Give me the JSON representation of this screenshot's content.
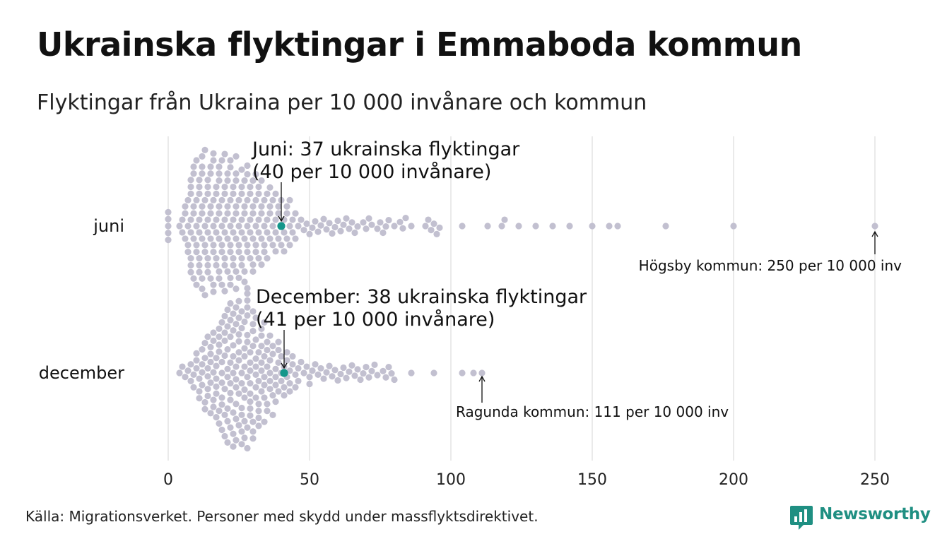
{
  "title": "Ukrainska flyktingar i Emmaboda kommun",
  "subtitle": "Flyktingar från Ukraina per 10 000 invånare och kommun",
  "source": "Källa: Migrationsverket. Personer med skydd under massflyktsdirektivet.",
  "brand": {
    "name": "Newsworthy",
    "color": "#1f8f82",
    "icon": "newsworthy-chart-icon"
  },
  "colors": {
    "dot": "#c2c0d0",
    "highlight": "#14968a",
    "grid": "#d4d4d4"
  },
  "chart_data": {
    "type": "scatter",
    "style": "beeswarm",
    "x_axis": {
      "min": 0,
      "max": 250,
      "ticks": [
        0,
        50,
        100,
        150,
        200,
        250
      ]
    },
    "grid": true,
    "series": [
      {
        "name": "juni",
        "values": [
          0,
          0,
          0,
          0,
          0,
          4,
          5,
          5,
          6,
          6,
          6,
          7,
          7,
          7,
          7,
          8,
          8,
          8,
          8,
          8,
          8,
          8,
          8,
          9,
          9,
          9,
          9,
          9,
          9,
          10,
          10,
          10,
          10,
          10,
          10,
          11,
          11,
          11,
          11,
          11,
          11,
          11,
          11,
          12,
          12,
          12,
          12,
          12,
          12,
          12,
          12,
          13,
          13,
          13,
          13,
          13,
          13,
          14,
          14,
          14,
          14,
          14,
          14,
          14,
          14,
          15,
          15,
          15,
          15,
          15,
          15,
          16,
          16,
          16,
          16,
          16,
          16,
          16,
          16,
          17,
          17,
          17,
          17,
          17,
          17,
          18,
          18,
          18,
          18,
          18,
          18,
          18,
          18,
          19,
          19,
          19,
          19,
          19,
          19,
          20,
          20,
          20,
          20,
          20,
          20,
          20,
          20,
          21,
          21,
          21,
          21,
          21,
          21,
          22,
          22,
          22,
          22,
          22,
          22,
          22,
          22,
          23,
          23,
          23,
          23,
          23,
          23,
          24,
          24,
          24,
          24,
          24,
          24,
          24,
          24,
          25,
          25,
          25,
          25,
          25,
          26,
          26,
          26,
          26,
          26,
          26,
          26,
          27,
          27,
          27,
          27,
          27,
          27,
          28,
          28,
          28,
          28,
          28,
          28,
          28,
          29,
          29,
          29,
          29,
          29,
          30,
          30,
          30,
          30,
          30,
          30,
          31,
          31,
          31,
          31,
          31,
          32,
          32,
          32,
          32,
          32,
          33,
          33,
          33,
          33,
          33,
          34,
          34,
          34,
          34,
          35,
          35,
          35,
          35,
          36,
          36,
          36,
          36,
          37,
          37,
          37,
          38,
          38,
          38,
          38,
          39,
          39,
          39,
          40,
          40,
          40,
          41,
          41,
          41,
          42,
          42,
          42,
          43,
          43,
          43,
          44,
          44,
          45,
          45,
          46,
          47,
          48,
          49,
          50,
          51,
          52,
          53,
          54,
          55,
          56,
          57,
          58,
          59,
          60,
          61,
          62,
          63,
          64,
          65,
          66,
          67,
          69,
          70,
          71,
          72,
          74,
          75,
          76,
          77,
          78,
          80,
          82,
          83,
          84,
          86,
          91,
          92,
          93,
          94,
          95,
          96,
          104,
          113,
          118,
          119,
          124,
          130,
          136,
          142,
          150,
          156,
          159,
          176,
          200,
          250
        ],
        "highlight": {
          "value": 40,
          "label_line1": "Juni: 37 ukrainska flyktingar",
          "label_line2": "(40 per 10 000 invånare)"
        },
        "max_annotation": {
          "value": 250,
          "label": "Högsby kommun: 250 per 10 000 inv"
        }
      },
      {
        "name": "december",
        "values": [
          4,
          5,
          6,
          7,
          8,
          8,
          9,
          9,
          10,
          10,
          10,
          11,
          11,
          11,
          12,
          12,
          12,
          12,
          13,
          13,
          13,
          13,
          14,
          14,
          14,
          14,
          14,
          15,
          15,
          15,
          15,
          15,
          16,
          16,
          16,
          16,
          16,
          17,
          17,
          17,
          17,
          17,
          17,
          18,
          18,
          18,
          18,
          18,
          18,
          19,
          19,
          19,
          19,
          19,
          19,
          19,
          20,
          20,
          20,
          20,
          20,
          20,
          20,
          21,
          21,
          21,
          21,
          21,
          21,
          21,
          21,
          22,
          22,
          22,
          22,
          22,
          22,
          22,
          22,
          23,
          23,
          23,
          23,
          23,
          23,
          23,
          23,
          24,
          24,
          24,
          24,
          24,
          24,
          24,
          24,
          25,
          25,
          25,
          25,
          25,
          25,
          25,
          25,
          26,
          26,
          26,
          26,
          26,
          26,
          26,
          26,
          27,
          27,
          27,
          27,
          27,
          27,
          27,
          27,
          28,
          28,
          28,
          28,
          28,
          28,
          28,
          28,
          28,
          29,
          29,
          29,
          29,
          29,
          29,
          29,
          29,
          30,
          30,
          30,
          30,
          30,
          30,
          30,
          31,
          31,
          31,
          31,
          31,
          31,
          31,
          32,
          32,
          32,
          32,
          32,
          32,
          33,
          33,
          33,
          33,
          33,
          33,
          34,
          34,
          34,
          34,
          34,
          34,
          35,
          35,
          35,
          35,
          35,
          36,
          36,
          36,
          36,
          36,
          37,
          37,
          37,
          37,
          38,
          38,
          38,
          38,
          39,
          39,
          39,
          39,
          40,
          40,
          40,
          41,
          41,
          41,
          42,
          42,
          42,
          43,
          43,
          43,
          44,
          44,
          45,
          45,
          46,
          46,
          47,
          48,
          49,
          50,
          50,
          51,
          52,
          53,
          54,
          55,
          56,
          57,
          58,
          59,
          60,
          61,
          62,
          63,
          64,
          65,
          66,
          67,
          68,
          69,
          70,
          71,
          72,
          73,
          74,
          76,
          77,
          78,
          79,
          80,
          86,
          94,
          104,
          108,
          111
        ],
        "highlight": {
          "value": 41,
          "label_line1": "December: 38 ukrainska flyktingar",
          "label_line2": "(41 per 10 000 invånare)"
        },
        "max_annotation": {
          "value": 111,
          "label": "Ragunda kommun: 111 per 10 000 inv"
        }
      }
    ]
  }
}
